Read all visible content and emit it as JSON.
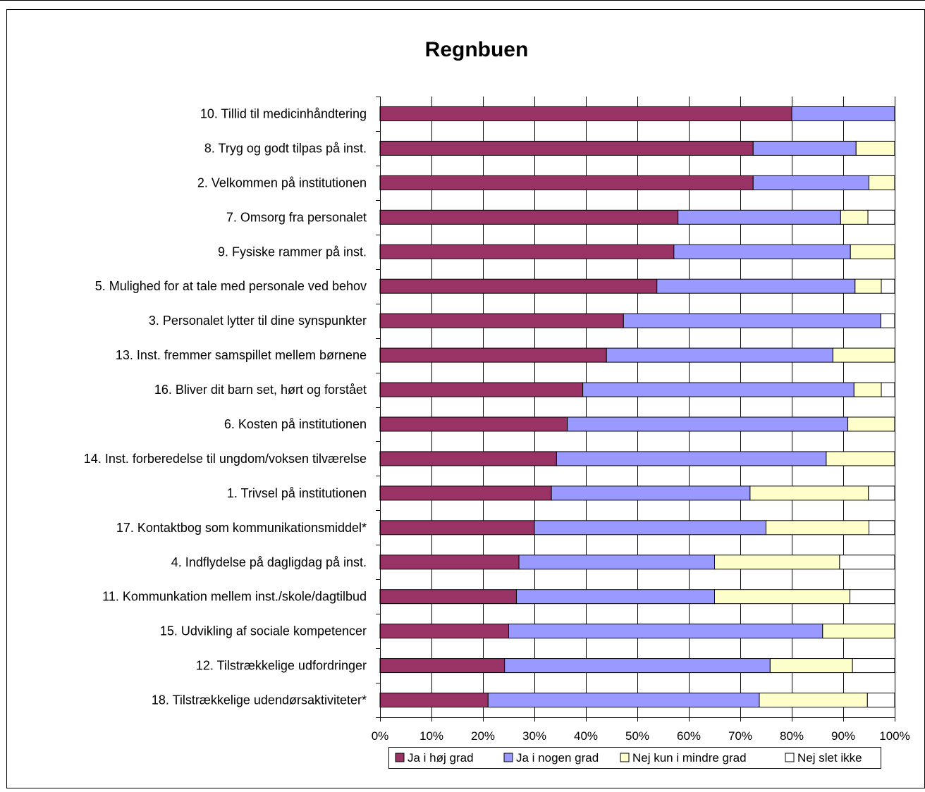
{
  "chart_data": {
    "type": "bar",
    "orientation": "horizontal",
    "stacked": "percent",
    "title": "Regnbuen",
    "categories": [
      "10. Tillid til medicinhåndtering",
      "8. Tryg og godt tilpas på inst.",
      "2. Velkommen på institutionen",
      "7. Omsorg fra personalet",
      "9. Fysiske rammer på inst.",
      "5. Mulighed for at tale med personale ved behov",
      "3. Personalet lytter til dine synspunkter",
      "13. Inst. fremmer samspillet mellem børnene",
      "16. Bliver dit barn set, hørt og forstået",
      "6. Kosten på institutionen",
      "14. Inst. forberedelse til ungdom/voksen tilværelse",
      "1. Trivsel på institutionen",
      "17. Kontaktbog som kommunikationsmiddel*",
      "4. Indflydelse på dagligdag på inst.",
      "11. Kommunkation mellem inst./skole/dagtilbud",
      "15. Udvikling af sociale kompetencer",
      "12. Tilstrækkelige udfordringer",
      "18. Tilstrækkelige udendørsaktiviteter*"
    ],
    "series": [
      {
        "name": "Ja i høj grad",
        "color": "#993366",
        "values": [
          80.0,
          72.5,
          72.5,
          57.9,
          57.1,
          53.8,
          47.3,
          44.0,
          39.4,
          36.4,
          34.3,
          33.3,
          30.0,
          27.0,
          26.5,
          25.0,
          24.2,
          21.0
        ]
      },
      {
        "name": "Ja i nogen grad",
        "color": "#9999FF",
        "values": [
          20.0,
          20.0,
          22.5,
          31.6,
          34.3,
          38.5,
          50.0,
          44.0,
          52.7,
          54.5,
          52.4,
          38.6,
          45.0,
          38.0,
          38.5,
          61.0,
          51.6,
          52.7
        ]
      },
      {
        "name": "Nej kun i mindre grad",
        "color": "#FFFFCC",
        "values": [
          0.0,
          7.5,
          5.0,
          5.3,
          8.6,
          5.1,
          0.0,
          12.0,
          5.3,
          9.1,
          13.3,
          23.0,
          20.0,
          24.3,
          26.3,
          14.0,
          16.0,
          21.0
        ]
      },
      {
        "name": "Nej slet ikke",
        "color": "#FFFFFF",
        "values": [
          0.0,
          0.0,
          0.0,
          5.2,
          0.0,
          2.6,
          2.7,
          0.0,
          2.6,
          0.0,
          0.0,
          5.1,
          5.0,
          10.7,
          8.7,
          0.0,
          8.2,
          5.3
        ]
      }
    ],
    "x_ticks": [
      "0%",
      "10%",
      "20%",
      "30%",
      "40%",
      "50%",
      "60%",
      "70%",
      "80%",
      "90%",
      "100%"
    ],
    "xlim": [
      0,
      100
    ],
    "grid": "vertical",
    "legend": "bottom-right"
  }
}
